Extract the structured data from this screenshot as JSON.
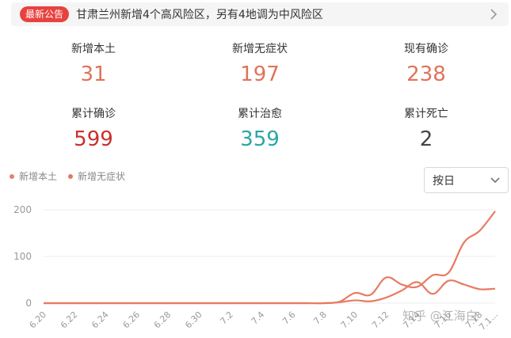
{
  "notice": {
    "badge": "最新公告",
    "text": "甘肃兰州新增4个高风险区，另有4地调为中风险区"
  },
  "stats": [
    {
      "label": "新增本土",
      "value": "31",
      "color": "#e2725b"
    },
    {
      "label": "新增无症状",
      "value": "197",
      "color": "#e2725b"
    },
    {
      "label": "现有确诊",
      "value": "238",
      "color": "#e2725b"
    },
    {
      "label": "累计确诊",
      "value": "599",
      "color": "#c9302c"
    },
    {
      "label": "累计治愈",
      "value": "359",
      "color": "#2aa6a6"
    },
    {
      "label": "累计死亡",
      "value": "2",
      "color": "#444444"
    }
  ],
  "legend": [
    {
      "label": "新增本土",
      "color": "#e8826a"
    },
    {
      "label": "新增无症状",
      "color": "#e07a5f"
    }
  ],
  "select": {
    "value": "按日"
  },
  "watermark": "知乎 @江海白",
  "colors": {
    "line": "#e87b63",
    "grid": "#eeeeee",
    "axis_text": "#999999"
  },
  "chart_data": {
    "type": "line",
    "x": [
      "6.20",
      "6.21",
      "6.22",
      "6.23",
      "6.24",
      "6.25",
      "6.26",
      "6.27",
      "6.28",
      "6.29",
      "6.30",
      "7.1",
      "7.2",
      "7.3",
      "7.4",
      "7.5",
      "7.6",
      "7.7",
      "7.8",
      "7.9",
      "7.10",
      "7.11",
      "7.12",
      "7.13",
      "7.14",
      "7.15",
      "7.16",
      "7.17",
      "7.18",
      "7.19"
    ],
    "xticks": [
      "6.20",
      "6.22",
      "6.24",
      "6.26",
      "6.28",
      "6.30",
      "7.2",
      "7.4",
      "7.6",
      "7.8",
      "7.10",
      "7.12",
      "7.14",
      "7.16",
      "7.18",
      "7.1..."
    ],
    "ylim": [
      0,
      200
    ],
    "yticks": [
      0,
      100,
      200
    ],
    "series": [
      {
        "name": "新增本土",
        "values": [
          0,
          0,
          0,
          0,
          0,
          0,
          0,
          0,
          0,
          0,
          0,
          0,
          0,
          0,
          0,
          0,
          0,
          0,
          0,
          2,
          6,
          4,
          12,
          27,
          45,
          20,
          48,
          40,
          30,
          31
        ]
      },
      {
        "name": "新增无症状",
        "values": [
          0,
          0,
          0,
          0,
          0,
          0,
          0,
          0,
          0,
          0,
          0,
          0,
          0,
          0,
          0,
          0,
          0,
          0,
          0,
          3,
          22,
          18,
          55,
          40,
          35,
          60,
          65,
          130,
          155,
          197
        ]
      }
    ]
  }
}
